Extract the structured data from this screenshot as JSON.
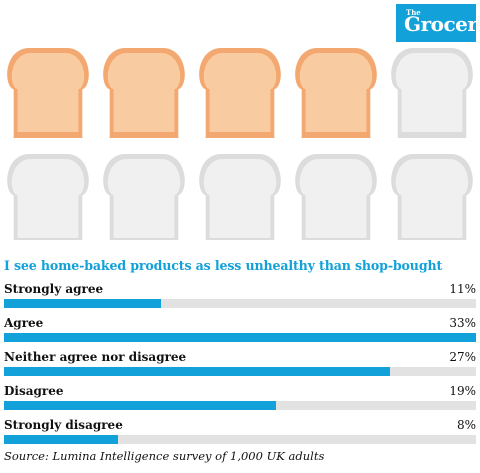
{
  "logo": {
    "the": "The",
    "name": "Grocer"
  },
  "colors": {
    "accent": "#12a1d9",
    "track": "#e2e2e2",
    "bread_filled_crust": "#f2a870",
    "bread_filled_inner": "#f9cba0",
    "bread_empty_crust": "#dcdcdc",
    "bread_empty_inner": "#f0f0f0"
  },
  "pictogram": {
    "total": 10,
    "filled": 4
  },
  "chart_data": {
    "type": "bar",
    "title": "I see home-baked products as less unhealthy than shop-bought",
    "categories": [
      "Strongly agree",
      "Agree",
      "Neither agree nor disagree",
      "Disagree",
      "Strongly disagree"
    ],
    "values": [
      11,
      33,
      27,
      19,
      8
    ],
    "value_labels": [
      "11%",
      "33%",
      "27%",
      "19%",
      "8%"
    ],
    "ylim": [
      0,
      33
    ],
    "unit": "%",
    "legend": "none"
  },
  "source": "Source: Lumina Intelligence survey of 1,000 UK adults"
}
